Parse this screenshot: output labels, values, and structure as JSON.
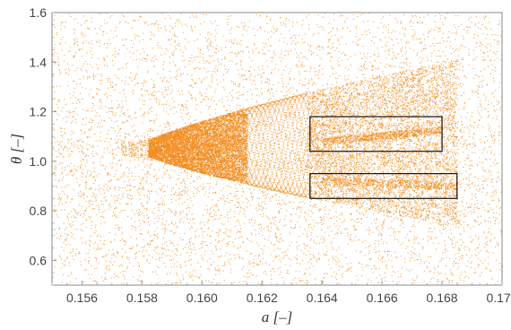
{
  "chart_data": {
    "type": "scatter",
    "title": "",
    "xlabel": "a [–]",
    "ylabel": "θ [–]",
    "xlim": [
      0.155,
      0.17
    ],
    "ylim": [
      0.5,
      1.6
    ],
    "x_ticks": [
      0.156,
      0.158,
      0.16,
      0.162,
      0.164,
      0.166,
      0.168,
      0.17
    ],
    "x_tick_labels": [
      "0.156",
      "0.158",
      "0.160",
      "0.162",
      "0.164",
      "0.166",
      "0.168",
      "0.170"
    ],
    "y_ticks": [
      0.6,
      0.8,
      1.0,
      1.2,
      1.4,
      1.6
    ],
    "y_tick_labels": [
      "0.6",
      "0.8",
      "1.0",
      "1.2",
      "1.4",
      "1.6"
    ],
    "grid": false,
    "legend": "none",
    "colors": {
      "points": "#f28c1e",
      "frame": "#888888",
      "boxes": "#111111"
    },
    "series": [
      {
        "description_points": "dense scatter of period-orbit points forming a bifurcation fan",
        "bifurcation_start_x": 0.1575,
        "center_y": 1.05
      }
    ],
    "annotations": [
      {
        "type": "rectangle",
        "x_range": [
          0.1636,
          0.168
        ],
        "y_range": [
          1.04,
          1.18
        ]
      },
      {
        "type": "rectangle",
        "x_range": [
          0.1636,
          0.1685
        ],
        "y_range": [
          0.85,
          0.95
        ]
      }
    ]
  }
}
